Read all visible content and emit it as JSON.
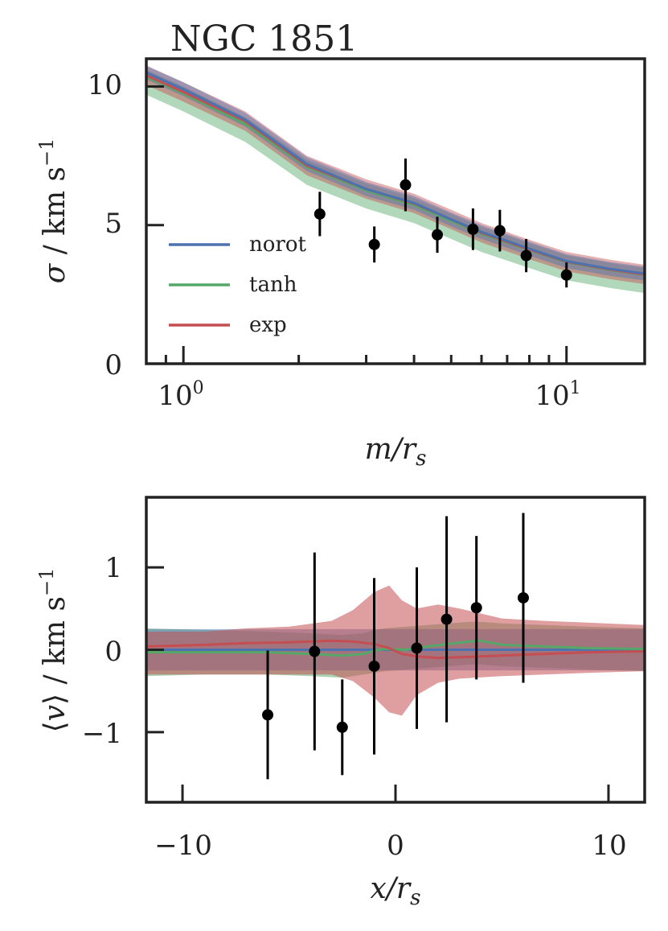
{
  "chart_data": [
    {
      "type": "line",
      "title": "NGC 1851",
      "xlabel": "m/r_s",
      "ylabel": "σ / km s⁻¹",
      "xscale": "log",
      "xlim": [
        0.8,
        16
      ],
      "ylim": [
        0,
        11
      ],
      "y_ticks": [
        0,
        5,
        10
      ],
      "x_ticks": [
        {
          "value": 1,
          "base": "10",
          "exp": "0"
        },
        {
          "value": 10,
          "base": "10",
          "exp": "1"
        }
      ],
      "legend": {
        "position": "lower-left",
        "entries": [
          "norot",
          "tanh",
          "exp"
        ]
      },
      "colors": {
        "norot": "#4c72b0",
        "tanh": "#55a868",
        "exp": "#c44e52",
        "points": "#000000"
      },
      "series": [
        {
          "name": "norot",
          "x": [
            0.8,
            1.0,
            1.45,
            2.1,
            3.0,
            4.0,
            5.0,
            6.0,
            8.0,
            10.0,
            13.0,
            16.0
          ],
          "y": [
            10.5,
            9.9,
            8.8,
            7.2,
            6.3,
            5.8,
            5.2,
            4.75,
            4.15,
            3.7,
            3.42,
            3.25
          ],
          "band": [
            0.25,
            0.25
          ]
        },
        {
          "name": "tanh",
          "x": [
            0.8,
            1.0,
            1.45,
            2.1,
            3.0,
            4.0,
            5.0,
            6.0,
            8.0,
            10.0,
            13.0,
            16.0
          ],
          "y": [
            10.35,
            9.75,
            8.65,
            7.1,
            6.25,
            5.72,
            5.15,
            4.68,
            4.1,
            3.66,
            3.38,
            3.2
          ],
          "band": [
            0.25,
            0.65
          ]
        },
        {
          "name": "exp",
          "x": [
            0.8,
            1.0,
            1.45,
            2.1,
            3.0,
            4.0,
            5.0,
            6.0,
            8.0,
            10.0,
            13.0,
            16.0
          ],
          "y": [
            10.4,
            9.8,
            8.75,
            7.15,
            6.3,
            5.78,
            5.2,
            4.72,
            4.12,
            3.68,
            3.4,
            3.22
          ],
          "band": [
            0.35,
            0.35
          ]
        }
      ],
      "points": {
        "x": [
          2.27,
          3.15,
          3.8,
          4.6,
          5.7,
          6.7,
          7.85,
          10.0
        ],
        "y": [
          5.4,
          4.3,
          6.45,
          4.65,
          4.85,
          4.8,
          3.9,
          3.2
        ],
        "err": [
          0.8,
          0.65,
          0.95,
          0.65,
          0.75,
          0.75,
          0.6,
          0.45
        ]
      }
    },
    {
      "type": "line",
      "title": "",
      "xlabel": "x/r_s",
      "ylabel": "⟨v⟩ / km s⁻¹",
      "xlim": [
        -11.7,
        11.7
      ],
      "ylim": [
        -1.85,
        1.85
      ],
      "x_ticks": [
        -10,
        0,
        10
      ],
      "y_ticks": [
        -1,
        0,
        1
      ],
      "tick_labels_x": [
        "−10",
        "0",
        "10"
      ],
      "tick_labels_y": [
        "−1",
        "0",
        "1"
      ],
      "series": [
        {
          "name": "norot",
          "x": [
            -11.7,
            11.7
          ],
          "y": [
            0.0,
            0.0
          ],
          "band_lo": [
            -0.25,
            -0.25
          ],
          "band_hi": [
            0.25,
            0.25
          ]
        },
        {
          "name": "tanh",
          "x": [
            -11.7,
            -9,
            -6,
            -4,
            -2.5,
            -1.5,
            -1.0,
            -0.5,
            0.5,
            1.5,
            2.5,
            3.5,
            4.0,
            5.0,
            7,
            9,
            11.7
          ],
          "y": [
            -0.03,
            -0.03,
            -0.03,
            -0.05,
            -0.07,
            -0.05,
            -0.01,
            0.01,
            0.0,
            0.04,
            0.07,
            0.1,
            0.11,
            0.06,
            0.04,
            0.02,
            0.01
          ],
          "band_lo": [
            -0.32,
            -0.3,
            -0.3,
            -0.32,
            -0.34,
            -0.3,
            -0.28,
            -0.26,
            -0.24,
            -0.22,
            -0.2,
            -0.18,
            -0.18,
            -0.2,
            -0.22,
            -0.24,
            -0.26
          ],
          "band_hi": [
            0.26,
            0.24,
            0.22,
            0.2,
            0.18,
            0.2,
            0.24,
            0.26,
            0.28,
            0.3,
            0.32,
            0.34,
            0.34,
            0.32,
            0.3,
            0.28,
            0.26
          ]
        },
        {
          "name": "exp",
          "x": [
            -11.7,
            -9,
            -7,
            -5,
            -3,
            -2,
            -1,
            -0.3,
            0.3,
            1,
            2,
            3,
            5,
            7,
            9,
            11.7
          ],
          "y": [
            0.04,
            0.06,
            0.08,
            0.09,
            0.11,
            0.1,
            0.07,
            0.02,
            -0.05,
            -0.08,
            -0.1,
            -0.09,
            -0.07,
            -0.05,
            -0.03,
            -0.02
          ],
          "band_lo": [
            -0.3,
            -0.3,
            -0.3,
            -0.3,
            -0.3,
            -0.38,
            -0.58,
            -0.76,
            -0.8,
            -0.55,
            -0.4,
            -0.35,
            -0.32,
            -0.3,
            -0.28,
            -0.26
          ],
          "band_hi": [
            0.22,
            0.22,
            0.26,
            0.28,
            0.35,
            0.48,
            0.7,
            0.78,
            0.6,
            0.5,
            0.55,
            0.5,
            0.38,
            0.35,
            0.33,
            0.3
          ]
        }
      ],
      "points": {
        "x": [
          -6.0,
          -3.8,
          -2.5,
          -1.0,
          1.0,
          2.4,
          3.8,
          6.0
        ],
        "y": [
          -0.79,
          -0.02,
          -0.94,
          -0.2,
          0.02,
          0.37,
          0.51,
          0.63
        ],
        "err": [
          0.78,
          1.2,
          0.58,
          1.07,
          0.98,
          1.25,
          0.87,
          1.03
        ]
      }
    }
  ]
}
